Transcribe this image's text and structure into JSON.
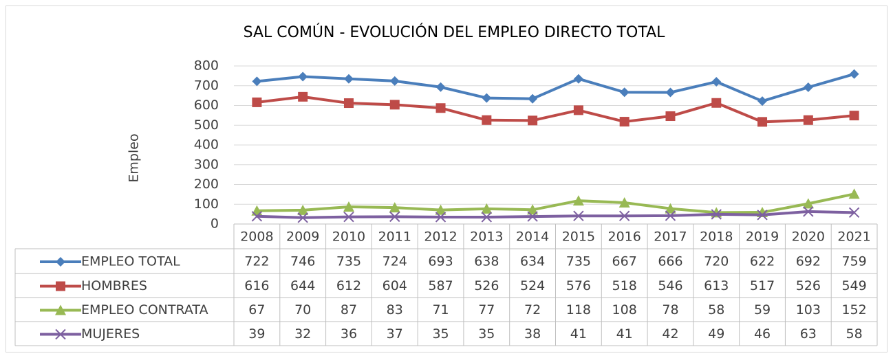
{
  "chart_data": {
    "type": "line",
    "title": "SAL COMÚN - EVOLUCIÓN DEL EMPLEO DIRECTO TOTAL",
    "y_label": "Empleo",
    "categories": [
      "2008",
      "2009",
      "2010",
      "2011",
      "2012",
      "2013",
      "2014",
      "2015",
      "2016",
      "2017",
      "2018",
      "2019",
      "2020",
      "2021"
    ],
    "series": [
      {
        "name": "EMPLEO TOTAL",
        "color": "#4a7ebb",
        "marker": "diamond",
        "values": [
          722,
          746,
          735,
          724,
          693,
          638,
          634,
          735,
          667,
          666,
          720,
          622,
          692,
          759
        ]
      },
      {
        "name": "HOMBRES",
        "color": "#be4b48",
        "marker": "square",
        "values": [
          616,
          644,
          612,
          604,
          587,
          526,
          524,
          576,
          518,
          546,
          613,
          517,
          526,
          549
        ]
      },
      {
        "name": "EMPLEO CONTRATA",
        "color": "#98b954",
        "marker": "triangle",
        "values": [
          67,
          70,
          87,
          83,
          71,
          77,
          72,
          118,
          108,
          78,
          58,
          59,
          103,
          152
        ]
      },
      {
        "name": "MUJERES",
        "color": "#7d60a0",
        "marker": "x",
        "values": [
          39,
          32,
          36,
          37,
          35,
          35,
          38,
          41,
          41,
          42,
          49,
          46,
          63,
          58
        ]
      }
    ],
    "ylim": [
      0,
      800
    ],
    "yticks": [
      0,
      100,
      200,
      300,
      400,
      500,
      600,
      700,
      800
    ],
    "grid": true,
    "data_table": true
  }
}
